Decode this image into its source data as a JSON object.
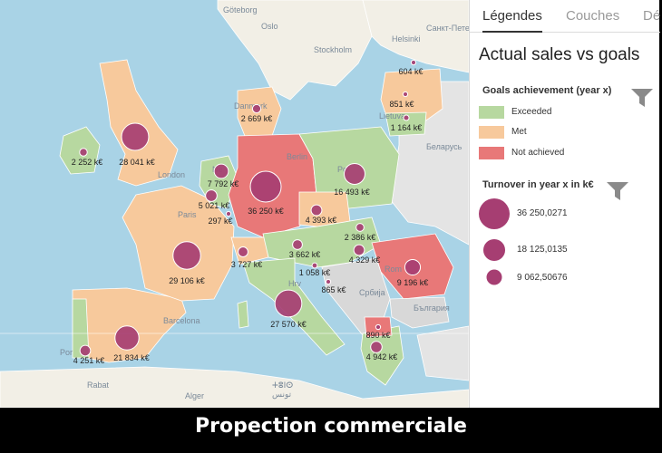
{
  "map": {
    "place_labels": [
      {
        "name": "Göteborg"
      },
      {
        "name": "Oslo"
      },
      {
        "name": "Stockholm"
      },
      {
        "name": "Helsinki"
      },
      {
        "name": "Санкт-Петербург"
      },
      {
        "name": "Danmark"
      },
      {
        "name": "London"
      },
      {
        "name": "Berlin"
      },
      {
        "name": "Paris"
      },
      {
        "name": "Barcelona"
      },
      {
        "name": "Беларусь"
      },
      {
        "name": "Hrv"
      },
      {
        "name": "Србија"
      },
      {
        "name": "България"
      },
      {
        "name": "Rabat"
      },
      {
        "name": "ⵜⵓⵏⵙ"
      },
      {
        "name": "تونس"
      },
      {
        "name": "Alger"
      },
      {
        "name": "Por"
      },
      {
        "name": "Ne"
      },
      {
        "name": "Pol"
      },
      {
        "name": "Lietuva"
      },
      {
        "name": "Rom"
      }
    ],
    "bubbles": [
      {
        "value_label": "36 250 k€",
        "status": "not_achieved"
      },
      {
        "value_label": "29 106 k€",
        "status": "met"
      },
      {
        "value_label": "28 041 k€",
        "status": "met"
      },
      {
        "value_label": "27 570 k€",
        "status": "exceeded"
      },
      {
        "value_label": "21 834 k€",
        "status": "met"
      },
      {
        "value_label": "16 493 k€",
        "status": "exceeded"
      },
      {
        "value_label": "9 196 k€",
        "status": "not_achieved"
      },
      {
        "value_label": "7 792 k€",
        "status": "exceeded"
      },
      {
        "value_label": "5 021 k€",
        "status": "exceeded"
      },
      {
        "value_label": "4 942 k€",
        "status": "exceeded"
      },
      {
        "value_label": "4 393 k€",
        "status": "met"
      },
      {
        "value_label": "4 329 k€",
        "status": "exceeded"
      },
      {
        "value_label": "4 251 k€",
        "status": "exceeded"
      },
      {
        "value_label": "3 727 k€",
        "status": "exceeded"
      },
      {
        "value_label": "3 662 k€",
        "status": "exceeded"
      },
      {
        "value_label": "2 669 k€",
        "status": "met"
      },
      {
        "value_label": "2 386 k€",
        "status": "exceeded"
      },
      {
        "value_label": "2 252 k€",
        "status": "exceeded"
      },
      {
        "value_label": "1 164 k€",
        "status": "exceeded"
      },
      {
        "value_label": "1 058 k€",
        "status": "exceeded"
      },
      {
        "value_label": "890 k€",
        "status": "not_achieved"
      },
      {
        "value_label": "865 k€",
        "status": "exceeded"
      },
      {
        "value_label": "851 k€",
        "status": "met"
      },
      {
        "value_label": "604 k€",
        "status": "met"
      },
      {
        "value_label": "297 k€",
        "status": "met"
      }
    ]
  },
  "panel": {
    "tabs": [
      {
        "label": "Légendes",
        "active": true
      },
      {
        "label": "Couches",
        "active": false
      },
      {
        "label": "Dé",
        "active": false
      }
    ],
    "title": "Actual sales vs goals",
    "color_legend": {
      "title": "Goals achievement (year x)",
      "items": [
        {
          "label": "Exceeded",
          "color": "#b7d8a0"
        },
        {
          "label": "Met",
          "color": "#f7c99c"
        },
        {
          "label": "Not achieved",
          "color": "#e87878"
        }
      ]
    },
    "size_legend": {
      "title": "Turnover in year x in k€",
      "items": [
        {
          "label": "36 250,0271",
          "value": 36250.0271
        },
        {
          "label": "18 125,0135",
          "value": 18125.0135
        },
        {
          "label": "9 062,50676",
          "value": 9062.50676
        }
      ]
    },
    "bubble_color": "#a63e72"
  },
  "caption": "Propection commerciale"
}
